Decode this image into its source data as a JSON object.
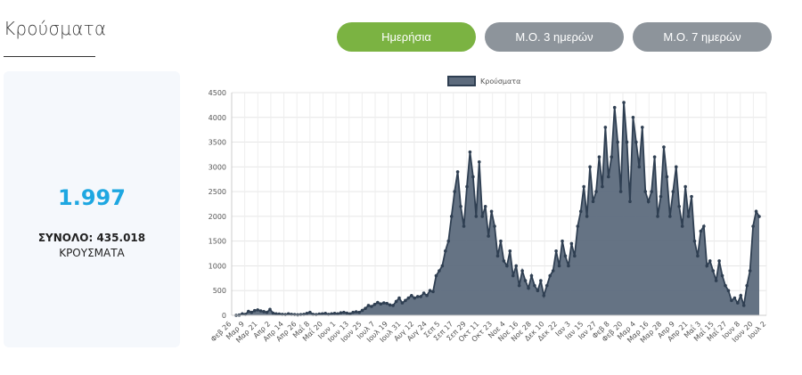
{
  "page": {
    "title": "Κρούσματα"
  },
  "tabs": [
    {
      "label": "Ημερήσια",
      "active": true,
      "color": "#7bb342"
    },
    {
      "label": "Μ.Ο. 3 ημερών",
      "active": false,
      "color": "#8d949b"
    },
    {
      "label": "Μ.Ο. 7 ημερών",
      "active": false,
      "color": "#8d949b"
    }
  ],
  "summary": {
    "latest_value": "1.997",
    "total_line": "ΣΥΝΟΛΟ: 435.018",
    "unit_label": "ΚΡΟΥΣΜΑΤΑ",
    "accent": "#1ea7e1"
  },
  "chart_data": {
    "type": "area",
    "title": "",
    "legend": {
      "label": "Κρούσματα",
      "position": "top"
    },
    "series": [
      {
        "name": "Κρούσματα",
        "fill": "#5d6b7d",
        "line": "#2f3f52"
      }
    ],
    "ylim": [
      0,
      4500
    ],
    "yticks": [
      0,
      500,
      1000,
      1500,
      2000,
      2500,
      3000,
      3500,
      4000,
      4500
    ],
    "grid": true,
    "xticks": [
      "Φεβ 26",
      "Μαρ 9",
      "Μαρ 21",
      "Απρ 2",
      "Απρ 14",
      "Απρ 26",
      "Μαΐ 8",
      "Μαΐ 20",
      "Ιουν 1",
      "Ιουν 13",
      "Ιουν 25",
      "Ιουλ 7",
      "Ιουλ 19",
      "Ιουλ 31",
      "Αυγ 12",
      "Αυγ 24",
      "Σεπ 5",
      "Σεπ 17",
      "Σεπ 29",
      "Οκτ 11",
      "Οκτ 23",
      "Νοε 4",
      "Νοε 16",
      "Νοε 28",
      "Δεκ 10",
      "Δεκ 22",
      "Ιαν 3",
      "Ιαν 15",
      "Ιαν 27",
      "Φεβ 8",
      "Φεβ 20",
      "Μαρ 4",
      "Μαρ 16",
      "Μαρ 28",
      "Απρ 9",
      "Απρ 21",
      "Μαΐ 3",
      "Μαΐ 15",
      "Μαΐ 27",
      "Ιουν 8",
      "Ιουν 20",
      "Ιουλ 2"
    ],
    "values": [
      0,
      5,
      30,
      20,
      80,
      60,
      95,
      110,
      90,
      75,
      60,
      120,
      45,
      30,
      25,
      20,
      15,
      30,
      20,
      15,
      10,
      15,
      20,
      40,
      60,
      20,
      15,
      25,
      30,
      40,
      20,
      30,
      40,
      30,
      50,
      60,
      45,
      30,
      60,
      70,
      60,
      100,
      140,
      200,
      180,
      220,
      260,
      230,
      250,
      240,
      210,
      200,
      280,
      350,
      250,
      300,
      350,
      400,
      350,
      380,
      380,
      450,
      400,
      500,
      480,
      800,
      900,
      1000,
      1300,
      1500,
      2000,
      2500,
      2900,
      2200,
      1800,
      2600,
      3300,
      2800,
      2000,
      3100,
      2000,
      2200,
      1600,
      2100,
      1800,
      1200,
      1500,
      1100,
      1000,
      1300,
      800,
      1000,
      600,
      900,
      700,
      550,
      800,
      600,
      500,
      700,
      400,
      600,
      800,
      900,
      1300,
      1000,
      1500,
      1200,
      1000,
      1450,
      1200,
      1800,
      2100,
      2600,
      2000,
      3000,
      2300,
      2500,
      3200,
      2600,
      3800,
      2800,
      3200,
      4200,
      3500,
      2500,
      4300,
      3500,
      2300,
      4000,
      3500,
      3000,
      3800,
      2500,
      2300,
      2500,
      3200,
      2000,
      2400,
      3400,
      2800,
      2000,
      2500,
      3000,
      2200,
      1800,
      2600,
      2000,
      2400,
      1500,
      1200,
      1700,
      1800,
      1000,
      1100,
      900,
      700,
      1100,
      800,
      600,
      500,
      300,
      350,
      250,
      400,
      200,
      600,
      900,
      1800,
      2100,
      1997
    ]
  }
}
